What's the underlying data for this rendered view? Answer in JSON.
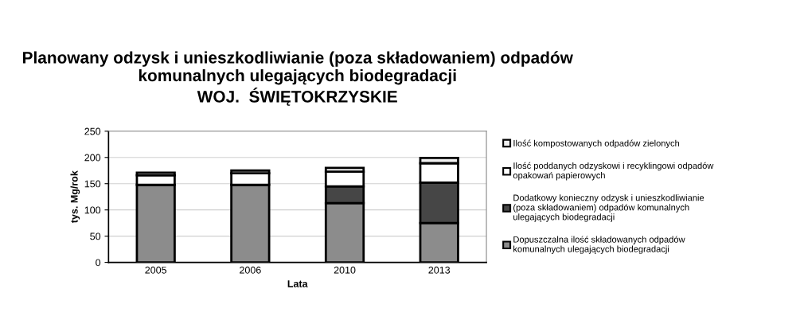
{
  "chart_data": {
    "type": "bar",
    "stacked": true,
    "title": "Planowany odzysk i unieszkodliwianie (poza składowaniem) odpadów\nkomunalnych ulegających biodegradacji\nWOJ.  ŚWIĘTOKRZYSKIE",
    "xlabel": "Lata",
    "ylabel": "tys. Mg/rok",
    "categories": [
      "2005",
      "2006",
      "2010",
      "2013"
    ],
    "series": [
      {
        "name": "Dopuszczalna ilość składowanych odpadów\nkomunalnych ulegających biodegradacji",
        "color": "#8c8c8c",
        "values": [
          148,
          148,
          113,
          75
        ]
      },
      {
        "name": "Dodatkowy konieczny odzysk i unieszkodliwianie\n(poza składowaniem) odpadów komunalnych\nulegających biodegradacji",
        "color": "#464646",
        "values": [
          0,
          0,
          32,
          77
        ]
      },
      {
        "name": "Ilość poddanych odzyskowi i recyklingowi odpadów\nopakowań papierowych",
        "color": "#ffffff",
        "values": [
          18,
          22,
          28,
          37
        ]
      },
      {
        "name": "Ilość kompostowanych odpadów zielonych",
        "color": "#f0f0f0",
        "values": [
          5,
          5,
          7,
          10
        ]
      }
    ],
    "ylim": [
      0,
      250
    ],
    "yticks": [
      0,
      50,
      100,
      150,
      200,
      250
    ],
    "grid": "y",
    "legend": "right"
  }
}
